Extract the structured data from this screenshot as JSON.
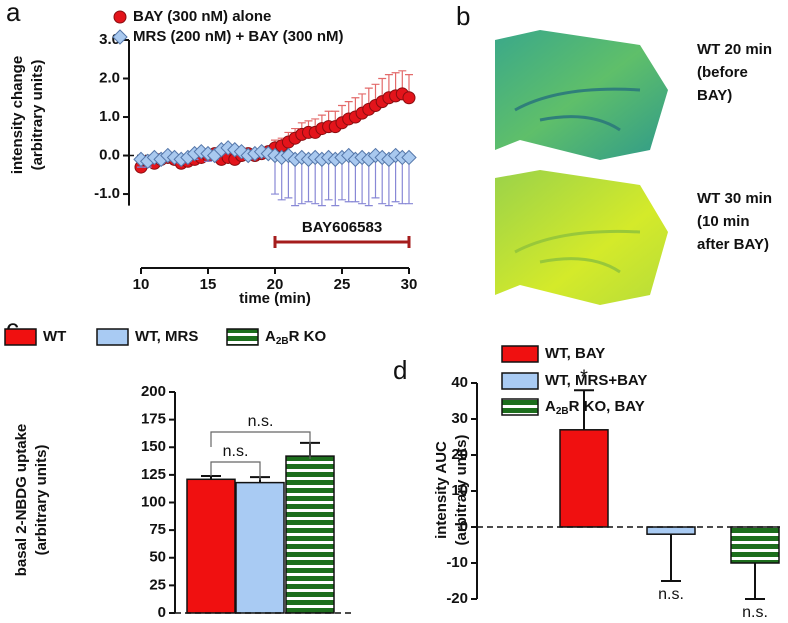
{
  "chart_data": [
    {
      "type": "scatter",
      "panel_label": "a",
      "x_label": "time (min)",
      "y_label": [
        "intensity change",
        "(arbitrary units)"
      ],
      "x": [
        10,
        10.5,
        11,
        11.5,
        12,
        12.5,
        13,
        13.5,
        14,
        14.5,
        15,
        15.5,
        16,
        16.5,
        17,
        17.5,
        18,
        18.5,
        19,
        19.5,
        20,
        20.5,
        21,
        21.5,
        22,
        22.5,
        23,
        23.5,
        24,
        24.5,
        25,
        25.5,
        26,
        26.5,
        27,
        27.5,
        28,
        28.5,
        29,
        29.5,
        30
      ],
      "series": [
        {
          "name": "BAY (300 nM) alone",
          "marker": "circle",
          "color": "#e3141b",
          "error_color": "#e36a6a",
          "error_direction": "up",
          "values": [
            -0.3,
            -0.15,
            -0.2,
            -0.1,
            -0.05,
            -0.1,
            -0.2,
            -0.15,
            -0.1,
            -0.05,
            0.0,
            0.05,
            -0.1,
            -0.05,
            -0.1,
            0.0,
            0.05,
            0.0,
            0.05,
            0.1,
            0.2,
            0.25,
            0.35,
            0.45,
            0.55,
            0.6,
            0.6,
            0.7,
            0.75,
            0.75,
            0.85,
            0.95,
            1.0,
            1.1,
            1.2,
            1.3,
            1.4,
            1.5,
            1.55,
            1.6,
            1.5
          ],
          "errors": [
            0.1,
            0.1,
            0.1,
            0.1,
            0.1,
            0.1,
            0.1,
            0.1,
            0.1,
            0.1,
            0.1,
            0.1,
            0.1,
            0.1,
            0.1,
            0.1,
            0.1,
            0.1,
            0.1,
            0.1,
            0.2,
            0.2,
            0.25,
            0.25,
            0.3,
            0.3,
            0.35,
            0.35,
            0.4,
            0.4,
            0.45,
            0.45,
            0.5,
            0.5,
            0.55,
            0.55,
            0.6,
            0.6,
            0.6,
            0.6,
            0.6
          ]
        },
        {
          "name": "MRS (200 nM) + BAY (300 nM)",
          "marker": "diamond",
          "color": "#a9c9ef",
          "error_color": "#8888d6",
          "error_direction": "down",
          "values": [
            -0.1,
            -0.15,
            -0.05,
            -0.1,
            0.0,
            -0.05,
            -0.1,
            -0.05,
            0.05,
            0.1,
            0.05,
            0.0,
            0.15,
            0.2,
            0.15,
            0.1,
            0.0,
            0.05,
            0.1,
            0.05,
            0.0,
            -0.05,
            0.0,
            -0.1,
            -0.05,
            -0.1,
            -0.05,
            -0.1,
            -0.05,
            -0.1,
            -0.05,
            0.0,
            -0.1,
            -0.05,
            -0.1,
            0.0,
            -0.05,
            -0.1,
            0.0,
            -0.05,
            -0.05
          ],
          "errors": [
            0.2,
            0.15,
            0.1,
            0.1,
            0.05,
            0.1,
            0.1,
            0.1,
            0.15,
            0.1,
            0.2,
            0.1,
            0.1,
            0.1,
            0.05,
            0.1,
            0.1,
            0.1,
            0.1,
            0.1,
            1.0,
            1.1,
            1.1,
            1.2,
            1.2,
            1.1,
            1.2,
            1.2,
            1.1,
            1.2,
            1.1,
            1.2,
            1.1,
            1.2,
            1.2,
            1.1,
            1.2,
            1.2,
            1.2,
            1.2,
            1.2
          ]
        }
      ],
      "xlim": [
        10,
        30
      ],
      "xticks": [
        10,
        15,
        20,
        25,
        30
      ],
      "ylim": [
        -1.3,
        3.0
      ],
      "yticks": [
        {
          "value": -1,
          "label": "-1.0"
        },
        {
          "value": 0,
          "label": "0.0"
        },
        {
          "value": 1,
          "label": "1.0"
        },
        {
          "value": 2,
          "label": "2.0"
        },
        {
          "value": 3,
          "label": "3.0"
        }
      ],
      "zero_line": true,
      "annotation": {
        "text": "BAY606583",
        "x_start": 20,
        "x_end": 30,
        "color": "#a51d1d"
      }
    },
    {
      "type": "bar",
      "panel_label": "c",
      "y_label": [
        "basal 2-NBDG uptake",
        "(arbitrary units)"
      ],
      "series": [
        {
          "name": "WT",
          "color": "#f01010",
          "values": [
            121
          ],
          "errors": [
            3
          ]
        },
        {
          "name": "WT, MRS",
          "color": "#a9cbf3",
          "values": [
            118
          ],
          "errors": [
            5
          ]
        },
        {
          "name": [
            "A",
            "2B",
            "R KO"
          ],
          "color": "#1d6e1d",
          "pattern": "stripes",
          "values": [
            142
          ],
          "errors": [
            12
          ]
        }
      ],
      "ylim": [
        0,
        200
      ],
      "yticks": [
        0,
        25,
        50,
        75,
        100,
        125,
        150,
        175,
        200
      ],
      "zero_line": true,
      "comparisons": [
        {
          "from": 0,
          "to": 2,
          "label": "n.s."
        },
        {
          "from": 0,
          "to": 1,
          "label": "n.s."
        }
      ]
    },
    {
      "type": "bar",
      "panel_label": "d",
      "y_label": [
        "intensity AUC",
        "(arbitrary units)"
      ],
      "series": [
        {
          "name": "WT, BAY",
          "color": "#f01010",
          "values": [
            27
          ],
          "errors": [
            11
          ],
          "bar_label": "*"
        },
        {
          "name": "WT, MRS+BAY",
          "color": "#a9cbf3",
          "values": [
            -2
          ],
          "errors": [
            13
          ],
          "bar_label": "n.s."
        },
        {
          "name": [
            "A",
            "2B",
            "R KO, BAY"
          ],
          "color": "#1d6e1d",
          "pattern": "stripes",
          "values": [
            -10
          ],
          "errors": [
            10
          ],
          "bar_label": "n.s."
        }
      ],
      "ylim": [
        -20,
        40
      ],
      "yticks": [
        -20,
        -10,
        0,
        10,
        20,
        30,
        40
      ],
      "zero_line": true
    }
  ],
  "images": {
    "panel_label": "b",
    "items": [
      {
        "lines": [
          "WT 20 min",
          "(before",
          "BAY)"
        ]
      },
      {
        "lines": [
          "WT 30 min",
          "(10 min",
          "after BAY)"
        ]
      }
    ]
  }
}
